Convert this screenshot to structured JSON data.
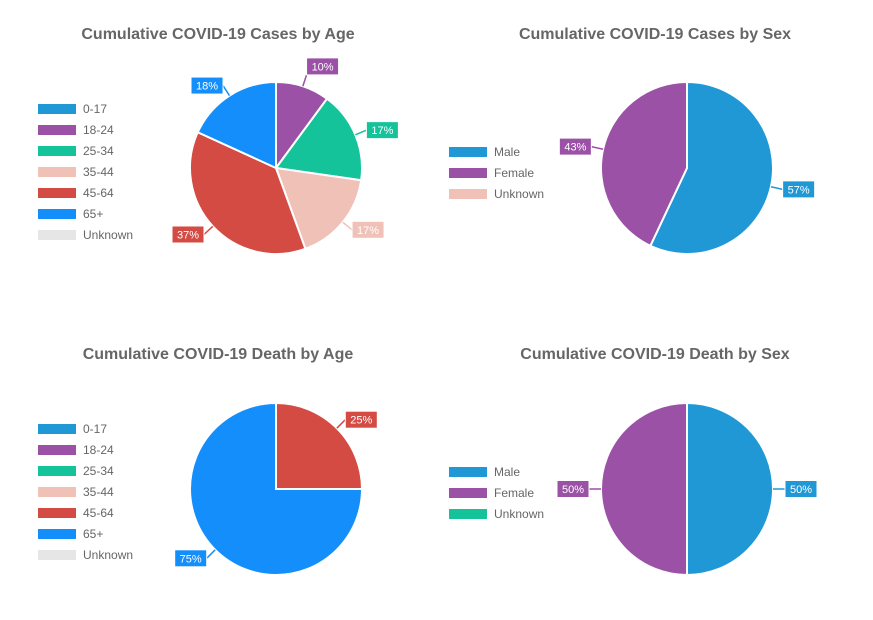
{
  "chart_data": [
    {
      "type": "pie",
      "title": "Cumulative COVID-19 Cases by Age",
      "legend_position": "left",
      "categories": [
        "0-17",
        "18-24",
        "25-34",
        "35-44",
        "45-64",
        "65+",
        "Unknown"
      ],
      "values": [
        0,
        10,
        17,
        17,
        37,
        18,
        0
      ],
      "value_labels": [
        "",
        "10%",
        "17%",
        "17%",
        "37%",
        "18%",
        ""
      ],
      "colors": [
        "#1f98d5",
        "#9b51a6",
        "#14c39a",
        "#f0c1b7",
        "#d44b44",
        "#138efb",
        "#e6e6e6"
      ]
    },
    {
      "type": "pie",
      "title": "Cumulative COVID-19 Cases by Sex",
      "legend_position": "left",
      "categories": [
        "Male",
        "Female",
        "Unknown"
      ],
      "values": [
        57,
        43,
        0
      ],
      "value_labels": [
        "57%",
        "43%",
        ""
      ],
      "colors": [
        "#1f98d5",
        "#9b51a6",
        "#f0c1b7"
      ]
    },
    {
      "type": "pie",
      "title": "Cumulative COVID-19 Death by Age",
      "legend_position": "left",
      "categories": [
        "0-17",
        "18-24",
        "25-34",
        "35-44",
        "45-64",
        "65+",
        "Unknown"
      ],
      "values": [
        0,
        0,
        0,
        0,
        25,
        75,
        0
      ],
      "value_labels": [
        "",
        "",
        "",
        "",
        "25%",
        "75%",
        ""
      ],
      "colors": [
        "#1f98d5",
        "#9b51a6",
        "#14c39a",
        "#f0c1b7",
        "#d44b44",
        "#138efb",
        "#e6e6e6"
      ]
    },
    {
      "type": "pie",
      "title": "Cumulative COVID-19 Death by Sex",
      "legend_position": "left",
      "categories": [
        "Male",
        "Female",
        "Unknown"
      ],
      "values": [
        50,
        50,
        0
      ],
      "value_labels": [
        "50%",
        "50%",
        ""
      ],
      "colors": [
        "#1f98d5",
        "#9b51a6",
        "#14c39a"
      ]
    }
  ]
}
